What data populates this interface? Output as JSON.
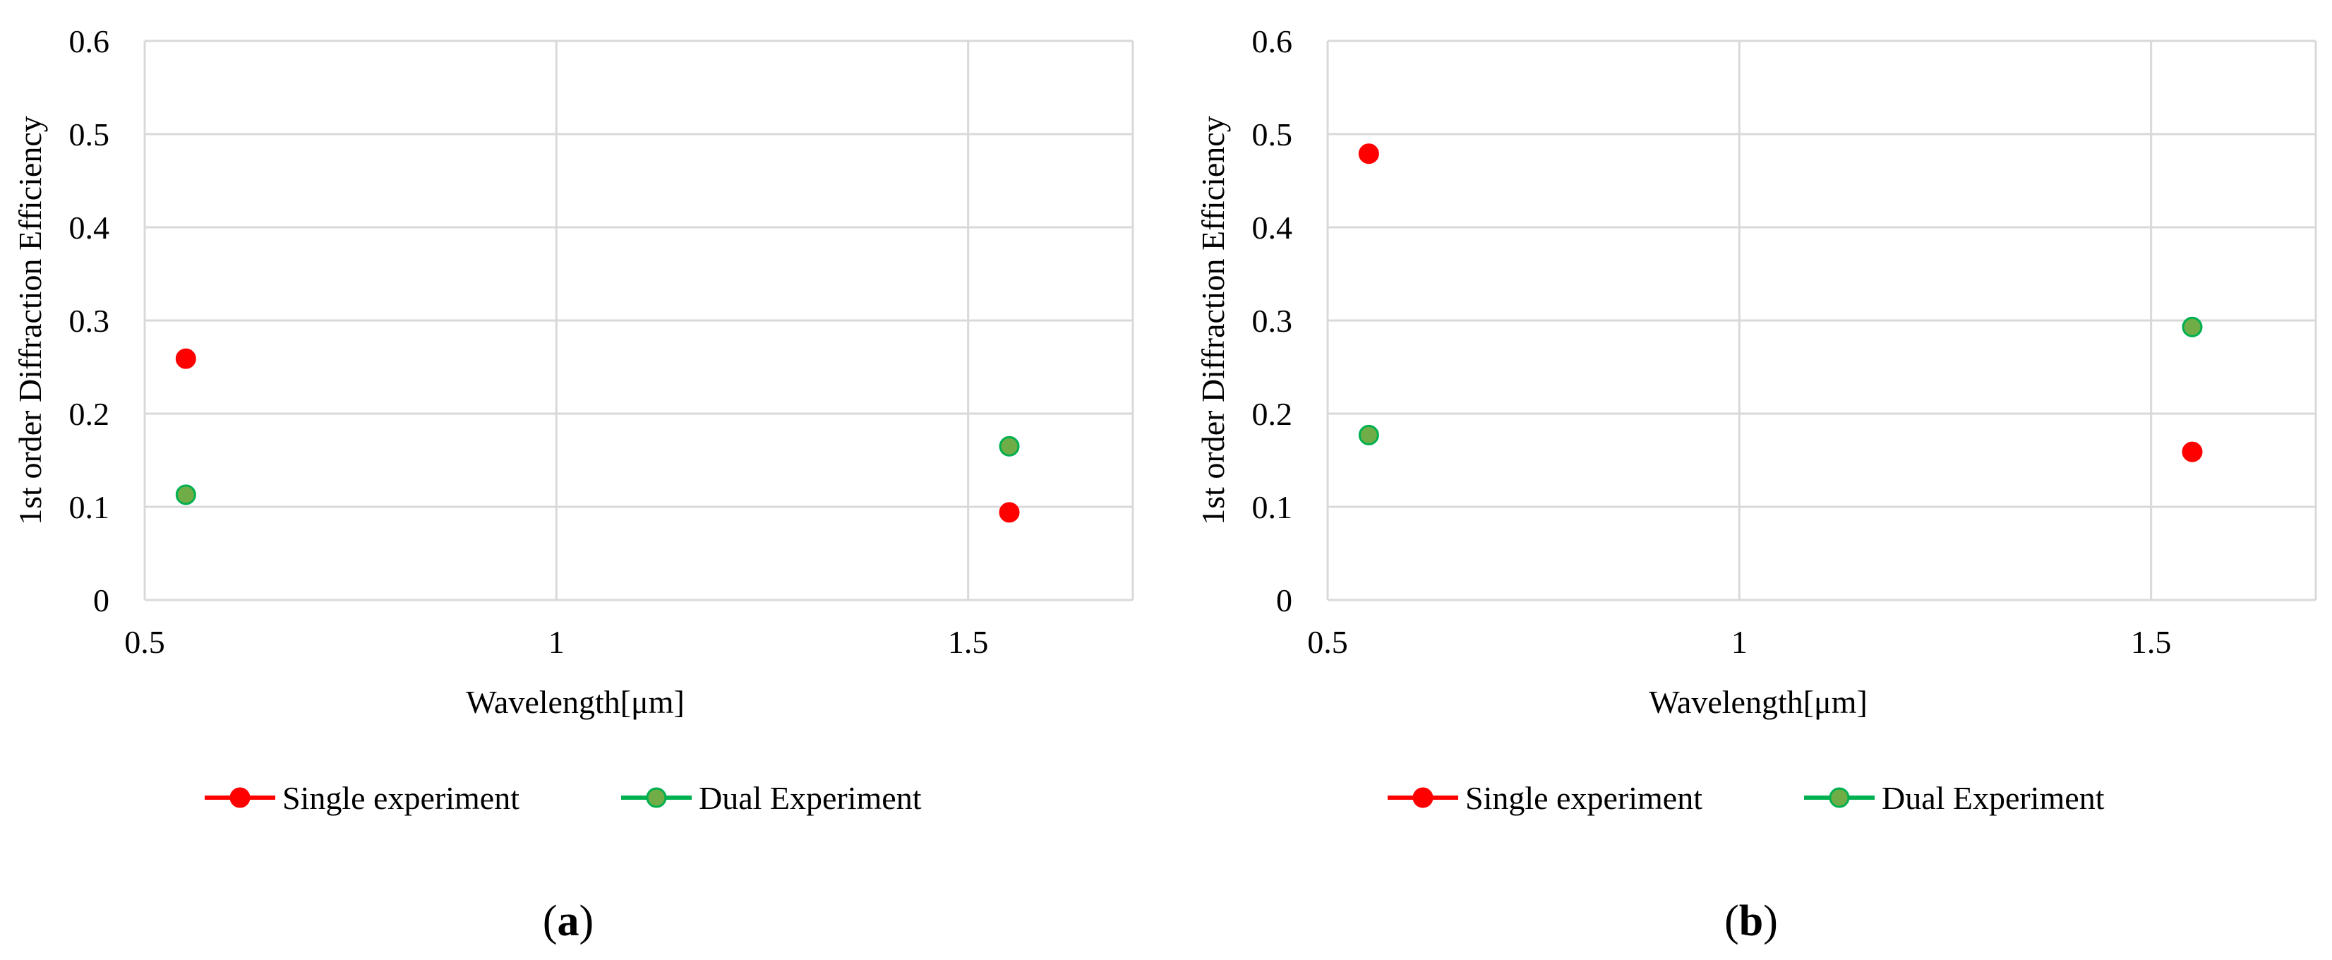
{
  "chart_data": [
    {
      "type": "scatter",
      "panel_label": "(a)",
      "xlabel": "Wavelength[μm]",
      "ylabel": "1st order Diffraction Efficiency",
      "xlim": [
        0.5,
        1.7
      ],
      "ylim": [
        0,
        0.6
      ],
      "x_ticks": [
        0.5,
        1,
        1.5
      ],
      "x_tick_labels": [
        "0.5",
        "1",
        "1.5"
      ],
      "y_ticks": [
        0,
        0.1,
        0.2,
        0.3,
        0.4,
        0.5,
        0.6
      ],
      "y_tick_labels": [
        "0",
        "0.1",
        "0.2",
        "0.3",
        "0.4",
        "0.5",
        "0.6"
      ],
      "grid": true,
      "legend_position": "bottom",
      "series": [
        {
          "name": "Single experiment",
          "color": "#ff0000",
          "edge_color": "#ff0000",
          "x": [
            0.55,
            1.55
          ],
          "y": [
            0.259,
            0.094
          ]
        },
        {
          "name": "Dual Experiment",
          "color": "#70ad47",
          "edge_color": "#00b050",
          "x": [
            0.55,
            1.55
          ],
          "y": [
            0.113,
            0.165
          ]
        }
      ]
    },
    {
      "type": "scatter",
      "panel_label": "(b)",
      "xlabel": "Wavelength[μm]",
      "ylabel": "1st order Diffraction Efficiency",
      "xlim": [
        0.5,
        1.7
      ],
      "ylim": [
        0,
        0.6
      ],
      "x_ticks": [
        0.5,
        1,
        1.5
      ],
      "x_tick_labels": [
        "0.5",
        "1",
        "1.5"
      ],
      "y_ticks": [
        0,
        0.1,
        0.2,
        0.3,
        0.4,
        0.5,
        0.6
      ],
      "y_tick_labels": [
        "0",
        "0.1",
        "0.2",
        "0.3",
        "0.4",
        "0.5",
        "0.6"
      ],
      "grid": true,
      "legend_position": "bottom",
      "series": [
        {
          "name": "Single experiment",
          "color": "#ff0000",
          "edge_color": "#ff0000",
          "x": [
            0.55,
            1.55
          ],
          "y": [
            0.479,
            0.159
          ]
        },
        {
          "name": "Dual Experiment",
          "color": "#70ad47",
          "edge_color": "#00b050",
          "x": [
            0.55,
            1.55
          ],
          "y": [
            0.177,
            0.293
          ]
        }
      ]
    }
  ]
}
